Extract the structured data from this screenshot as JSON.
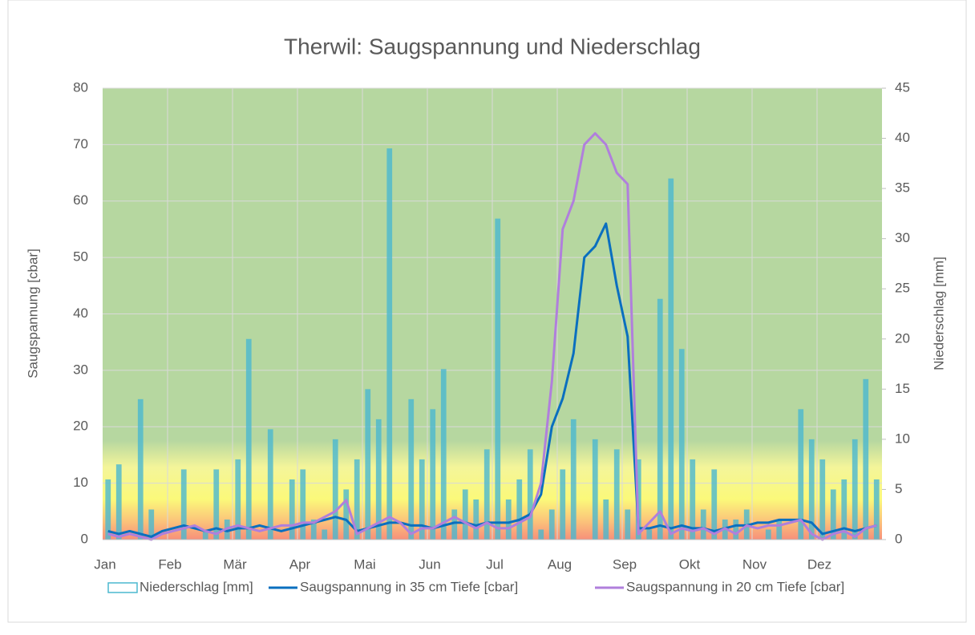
{
  "chart_data": {
    "type": "combo",
    "title": "Therwil: Saugspannung und Niederschlag",
    "y_label": "Saugspannung [cbar]",
    "y2_label": "Niederschlag [mm]",
    "categories": [
      "Jan",
      null,
      null,
      null,
      null,
      null,
      "Feb",
      null,
      null,
      null,
      null,
      null,
      "Mär",
      null,
      null,
      null,
      null,
      null,
      "Apr",
      null,
      null,
      null,
      null,
      null,
      "Mai",
      null,
      null,
      null,
      null,
      null,
      "Jun",
      null,
      null,
      null,
      null,
      null,
      "Jul",
      null,
      null,
      null,
      null,
      null,
      "Aug",
      null,
      null,
      null,
      null,
      null,
      "Sep",
      null,
      null,
      null,
      null,
      null,
      "Okt",
      null,
      null,
      null,
      null,
      null,
      "Nov",
      null,
      null,
      null,
      null,
      null,
      "Dez",
      null,
      null,
      null,
      null,
      null
    ],
    "ylim": [
      0,
      80
    ],
    "yticks": [
      0,
      10,
      20,
      30,
      40,
      50,
      60,
      70,
      80
    ],
    "y2lim": [
      0,
      45
    ],
    "y2ticks": [
      0,
      5,
      10,
      15,
      20,
      25,
      30,
      35,
      40,
      45
    ],
    "grid": true,
    "legend": "bottom",
    "series": [
      {
        "name": "Niederschlag [mm]",
        "type": "bar",
        "axis": "y2",
        "color": "#4bb8cf",
        "values": [
          6,
          7.5,
          0,
          14,
          3,
          0,
          0,
          7,
          0,
          1,
          7,
          2,
          8,
          20,
          0,
          11,
          0,
          6,
          7,
          2,
          1,
          10,
          5,
          8,
          15,
          12,
          39,
          0,
          14,
          8,
          13,
          17,
          3,
          5,
          4,
          9,
          32,
          4,
          6,
          9,
          1,
          3,
          7,
          12,
          0,
          10,
          4,
          9,
          3,
          8,
          1,
          24,
          36,
          19,
          8,
          3,
          7,
          2,
          2,
          3,
          0,
          1,
          2,
          0,
          13,
          10,
          8,
          5,
          6,
          10,
          16,
          6
        ]
      },
      {
        "name": "Saugspannung in 35 cm Tiefe [cbar]",
        "type": "line",
        "axis": "y",
        "color": "#0a6fbf",
        "values": [
          1.5,
          1,
          1.5,
          1,
          0.5,
          1.5,
          2,
          2.5,
          2,
          1.5,
          2,
          1.5,
          2,
          2,
          2.5,
          2,
          1.5,
          2,
          2.5,
          3,
          3.5,
          4,
          3.5,
          1.5,
          2,
          2.5,
          3,
          3,
          2.5,
          2.5,
          2,
          2.5,
          3,
          3,
          2.5,
          3,
          3,
          3,
          3.5,
          4.5,
          8,
          20,
          25,
          33,
          50,
          52,
          56,
          45,
          36,
          2,
          2,
          2.5,
          2,
          2.5,
          2,
          2,
          1.5,
          2,
          2.5,
          2.5,
          3,
          3,
          3.5,
          3.5,
          3.5,
          3,
          1,
          1.5,
          2,
          1.5,
          2,
          2.5
        ]
      },
      {
        "name": "Saugspannung in 20 cm Tiefe [cbar]",
        "type": "line",
        "axis": "y",
        "color": "#b07fdc",
        "values": [
          1,
          0.5,
          1,
          0.5,
          0,
          1,
          1.5,
          2,
          2.5,
          1.5,
          1,
          2,
          2.5,
          2,
          1.5,
          2,
          2.5,
          2.5,
          3,
          3,
          4,
          5,
          7,
          1,
          2,
          3,
          4,
          3,
          1,
          2,
          2,
          3,
          4,
          3,
          2,
          3,
          2,
          2,
          3,
          4,
          10,
          28,
          55,
          60,
          70,
          72,
          70,
          65,
          63,
          1,
          3,
          5,
          1,
          2,
          1.5,
          2,
          1,
          2,
          1,
          2.5,
          2,
          2.5,
          2.5,
          3,
          3.5,
          1,
          0,
          1,
          1.5,
          0.5,
          2,
          2.5
        ]
      }
    ]
  }
}
